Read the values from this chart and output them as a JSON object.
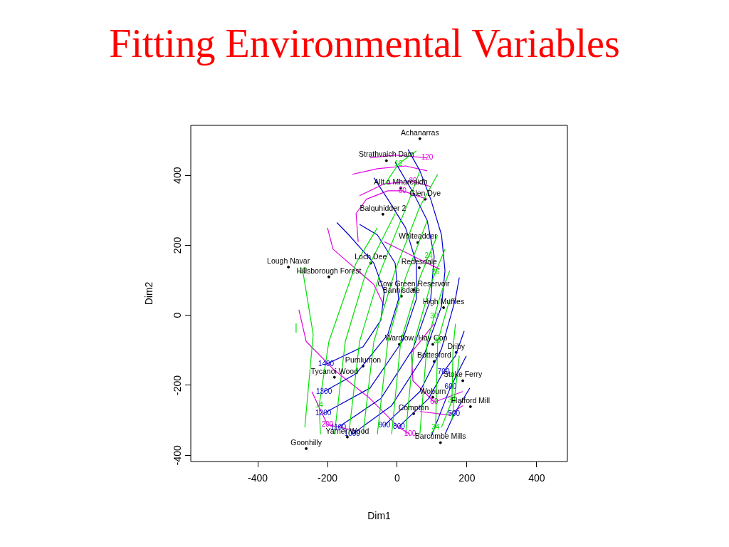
{
  "chart_data": {
    "type": "line",
    "title": "Fitting Environmental Variables",
    "xlabel": "Dim1",
    "ylabel": "Dim2",
    "xlim": [
      -592,
      488
    ],
    "ylim": [
      -418,
      543
    ],
    "xticks": [
      -400,
      -200,
      0,
      200,
      400
    ],
    "yticks": [
      -400,
      -200,
      0,
      200,
      400
    ],
    "grid": false,
    "legend": false,
    "marker": "none",
    "line_style": "solid",
    "series": [
      {
        "color": "#00e000",
        "x": [
          -290,
          -290
        ],
        "values": [
          -24,
          -49
        ]
      },
      {
        "color": "#00e000",
        "x": [
          -265,
          -241,
          -271
        ],
        "values": [
          -320,
          -55,
          128
        ]
      },
      {
        "color": "#00e000",
        "x": [
          -220,
          -224,
          -196,
          -118,
          -57
        ],
        "values": [
          -340,
          -258,
          -75,
          149,
          250
        ]
      },
      {
        "color": "#00e000",
        "x": [
          -180,
          -149,
          -88,
          -6
        ],
        "values": [
          -340,
          -75,
          128,
          291
        ]
      },
      {
        "color": "#00e000",
        "x": [
          -139,
          -108,
          -47,
          35,
          65
        ],
        "values": [
          -340,
          -75,
          128,
          332,
          413
        ]
      },
      {
        "color": "#00e000",
        "x": [
          -98,
          -67,
          -6,
          65,
          116
        ],
        "values": [
          -340,
          -75,
          128,
          311,
          403
        ]
      },
      {
        "color": "#00e000",
        "x": [
          -57,
          -27,
          24,
          86
        ],
        "values": [
          -340,
          -75,
          108,
          271
        ]
      },
      {
        "color": "#00e000",
        "x": [
          -16,
          10,
          65,
          90,
          116
        ],
        "values": [
          -340,
          -75,
          108,
          169,
          230
        ]
      },
      {
        "color": "#00e000",
        "x": [
          24,
          49,
          96,
          110,
          137
        ],
        "values": [
          -340,
          -75,
          88,
          124,
          189
        ]
      },
      {
        "color": "#00e000",
        "x": [
          65,
          86,
          106,
          127,
          151
        ],
        "values": [
          -340,
          -75,
          -4,
          67,
          128
        ]
      },
      {
        "color": "#00e000",
        "x": [
          96,
          110,
          116,
          151
        ],
        "values": [
          -340,
          -320,
          -75,
          47
        ]
      },
      {
        "color": "#00e000",
        "x": [
          127,
          157,
          160,
          167
        ],
        "values": [
          -320,
          -244,
          -96,
          -24
        ]
      },
      {
        "color": "#00e000",
        "x": [
          157,
          178
        ],
        "values": [
          -299,
          -116
        ]
      },
      {
        "color": "#00e000",
        "x": [
          -37,
          4,
          55
        ],
        "values": [
          372,
          433,
          470
        ]
      },
      {
        "color": "#0000cd",
        "x": [
          -204,
          -98,
          -47,
          -37,
          -67,
          -139,
          -173
        ],
        "values": [
          -140,
          -90,
          -14,
          67,
          149,
          230,
          265
        ]
      },
      {
        "color": "#0000cd",
        "x": [
          -210,
          -118,
          -27,
          4,
          -6,
          -57,
          -108
        ],
        "values": [
          -218,
          -167,
          -55,
          47,
          149,
          230,
          260
        ]
      },
      {
        "color": "#0000cd",
        "x": [
          -212,
          -78,
          14,
          55,
          55,
          24,
          -27,
          -67
        ],
        "values": [
          -281,
          -208,
          -75,
          47,
          149,
          250,
          332,
          393
        ]
      },
      {
        "color": "#0000cd",
        "x": [
          -169,
          -47,
          45,
          96,
          106,
          86,
          45,
          -6
        ],
        "values": [
          -320,
          -238,
          -96,
          47,
          169,
          271,
          352,
          438
        ]
      },
      {
        "color": "#0000cd",
        "x": [
          -129,
          -16,
          76,
          127,
          137,
          127,
          96,
          65,
          31
        ],
        "values": [
          -340,
          -258,
          -116,
          26,
          128,
          230,
          332,
          413,
          474
        ]
      },
      {
        "color": "#0000cd",
        "x": [
          -37,
          65,
          127,
          167,
          178
        ],
        "values": [
          -315,
          -218,
          -96,
          47,
          108
        ]
      },
      {
        "color": "#0000cd",
        "x": [
          5,
          90,
          133,
          167,
          192
        ],
        "values": [
          -318,
          -238,
          -161,
          -116,
          -45
        ]
      },
      {
        "color": "#0000cd",
        "x": [
          96,
          153,
          198
        ],
        "values": [
          -350,
          -205,
          -116
        ]
      },
      {
        "color": "#0000cd",
        "x": [
          137,
          163,
          208
        ],
        "values": [
          -340,
          -283,
          -208
        ]
      },
      {
        "color": "#e000e0",
        "x": [
          -78,
          -6,
          86
        ],
        "values": [
          450,
          458,
          450
        ]
      },
      {
        "color": "#e000e0",
        "x": [
          -129,
          -57,
          24,
          86
        ],
        "values": [
          403,
          419,
          427,
          413
        ]
      },
      {
        "color": "#e000e0",
        "x": [
          -108,
          -37,
          45,
          96
        ],
        "values": [
          342,
          376,
          383,
          368
        ]
      },
      {
        "color": "#e000e0",
        "x": [
          -112,
          -118,
          -88,
          -27,
          15,
          86
        ],
        "values": [
          210,
          291,
          332,
          356,
          356,
          332
        ]
      },
      {
        "color": "#e000e0",
        "x": [
          -200,
          -184,
          -118,
          -67,
          -37
        ],
        "values": [
          250,
          189,
          132,
          88,
          26
        ]
      },
      {
        "color": "#e000e0",
        "x": [
          -37,
          86,
          122
        ],
        "values": [
          210,
          149,
          132
        ]
      },
      {
        "color": "#e000e0",
        "x": [
          -282,
          -261,
          -180,
          -78,
          4,
          37
        ],
        "values": [
          16,
          -75,
          -157,
          -238,
          -320,
          -340
        ]
      },
      {
        "color": "#e000e0",
        "x": [
          -245,
          -200,
          -118
        ],
        "values": [
          -218,
          -313,
          -330
        ]
      },
      {
        "color": "#e000e0",
        "x": [
          106,
          41,
          45,
          106,
          188
        ],
        "values": [
          -24,
          -106,
          -187,
          -248,
          -218
        ]
      },
      {
        "color": "#e000e0",
        "x": [
          65,
          147,
          188
        ],
        "values": [
          -275,
          -285,
          -258
        ]
      },
      {
        "type": "scatter",
        "color": "#000000",
        "marker": "circle",
        "x": [
          65,
          -31,
          10,
          80,
          -41,
          59,
          -312,
          -76,
          63,
          -196,
          47,
          12,
          133,
          6,
          102,
          169,
          106,
          -98,
          -180,
          188,
          102,
          210,
          47,
          -143,
          124,
          -261
        ],
        "values": [
          505,
          442,
          364,
          332,
          289,
          208,
          138,
          149,
          136,
          110,
          73,
          55,
          22,
          -83,
          -83,
          -106,
          -132,
          -145,
          -177,
          -187,
          -234,
          -261,
          -281,
          -348,
          -364,
          -381
        ],
        "value_labels": [
          "Achanarras",
          "Strathvaich Dam",
          "Allt a Mharcaidh",
          "Glen Dye",
          "Balquhidder 2",
          "Whiteadder",
          "Lough Navar",
          "Loch Dee",
          "Redesdale",
          "Hillsborough Forest",
          "Cow Green Reservoir",
          "Bannisdale",
          "High Muffles",
          "Wardlow",
          "Hay Cop",
          "Driby",
          "Bottesford",
          "Pumlumon",
          "Tycanoi Wood",
          "Stoke Ferry",
          "Woburn",
          "Flatford Mill",
          "Compton",
          "Yarner Wood",
          "Barcombe Mills",
          "Goonhilly"
        ]
      }
    ],
    "annotations": [
      {
        "text": "10",
        "x": -271,
        "y": 128
      },
      {
        "text": "14",
        "x": -224,
        "y": -258
      },
      {
        "text": "24",
        "x": 90,
        "y": 169
      },
      {
        "text": "26",
        "x": 110,
        "y": 124
      },
      {
        "text": "30",
        "x": 106,
        "y": -4
      },
      {
        "text": "34",
        "x": 110,
        "y": -320
      },
      {
        "text": "32",
        "x": 116,
        "y": -75
      },
      {
        "text": "36",
        "x": 157,
        "y": -244
      },
      {
        "text": "12",
        "x": 4,
        "y": 433
      },
      {
        "text": "1400",
        "x": -204,
        "y": -140
      },
      {
        "text": "1300",
        "x": -210,
        "y": -218
      },
      {
        "text": "1200",
        "x": -212,
        "y": -281
      },
      {
        "text": "1100",
        "x": -169,
        "y": -320
      },
      {
        "text": "1000",
        "x": -129,
        "y": -340
      },
      {
        "text": "900",
        "x": -37,
        "y": -315
      },
      {
        "text": "800",
        "x": 5,
        "y": -318
      },
      {
        "text": "700",
        "x": 133,
        "y": -161
      },
      {
        "text": "600",
        "x": 153,
        "y": -205
      },
      {
        "text": "500",
        "x": 163,
        "y": -283
      },
      {
        "text": "120",
        "x": 86,
        "y": 450
      },
      {
        "text": "80",
        "x": 45,
        "y": 383
      },
      {
        "text": "60",
        "x": 15,
        "y": 356
      },
      {
        "text": "100",
        "x": 37,
        "y": -340
      },
      {
        "text": "200",
        "x": -200,
        "y": -313
      },
      {
        "text": "60",
        "x": 106,
        "y": -248
      }
    ]
  }
}
